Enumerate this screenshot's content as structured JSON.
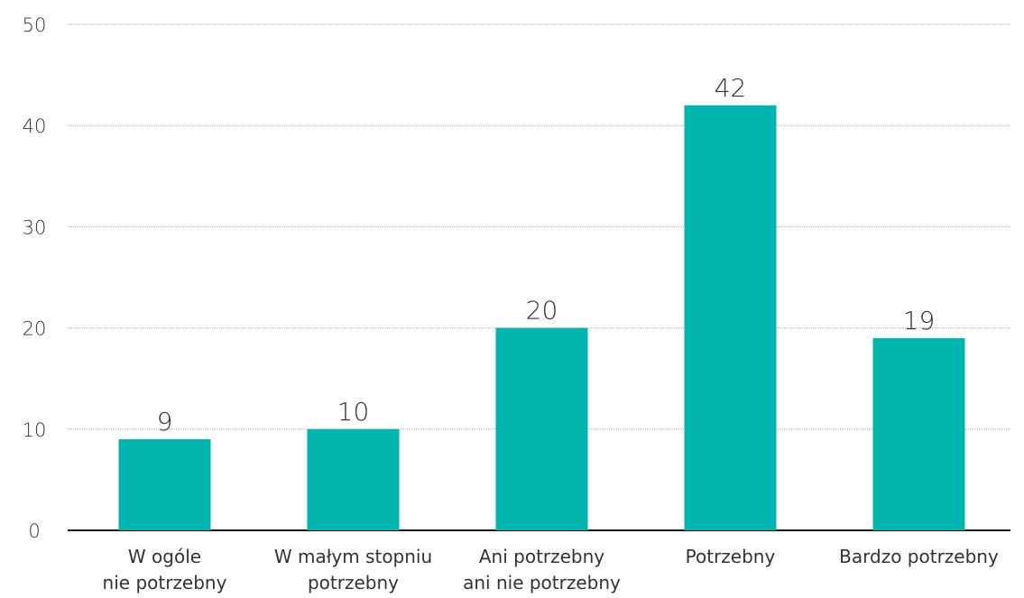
{
  "chart_data": {
    "type": "bar",
    "categories": [
      "W ogóle\nnie potrzebny",
      "W małym stopniu\npotrzebny",
      "Ani potrzebny\nani nie potrzebny",
      "Potrzebny",
      "Bardzo potrzebny"
    ],
    "values": [
      9,
      10,
      20,
      42,
      19
    ],
    "color": "#00b5ae",
    "ylim": [
      0,
      50
    ],
    "yticks": [
      0,
      10,
      20,
      30,
      40,
      50
    ],
    "grid": true
  }
}
